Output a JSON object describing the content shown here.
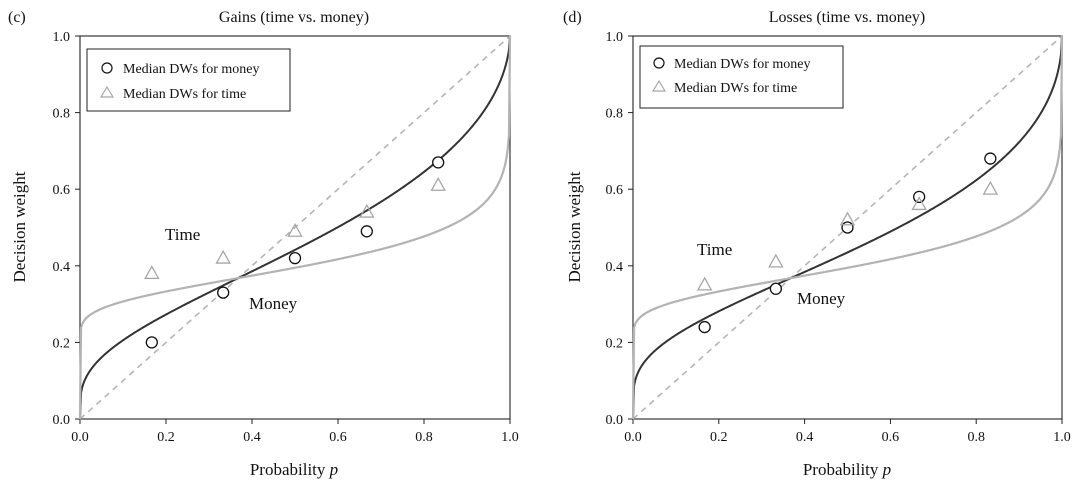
{
  "chart_data": [
    {
      "panel_label": "(c)",
      "type": "scatter",
      "title": "Gains (time vs. money)",
      "xlabel": "Probability",
      "xlabel_var": "p",
      "ylabel": "Decision weight",
      "xlim": [
        0,
        1
      ],
      "ylim": [
        0,
        1
      ],
      "xticks": [
        "0.0",
        "0.2",
        "0.4",
        "0.6",
        "0.8",
        "1.0"
      ],
      "yticks": [
        "0.0",
        "0.2",
        "0.4",
        "0.6",
        "0.8",
        "1.0"
      ],
      "grid": false,
      "legend_position": "top-left",
      "legend": [
        "Median DWs for money",
        "Median DWs for time"
      ],
      "annotations": {
        "time": "Time",
        "money": "Money"
      },
      "diagonal": true,
      "series": [
        {
          "name": "Median DWs for money",
          "marker": "circle",
          "color": "#111111",
          "points": [
            [
              0.167,
              0.2
            ],
            [
              0.333,
              0.33
            ],
            [
              0.5,
              0.42
            ],
            [
              0.667,
              0.49
            ],
            [
              0.833,
              0.67
            ]
          ],
          "fit": {
            "gamma": 0.55,
            "delta": 1.0
          }
        },
        {
          "name": "Median DWs for time",
          "marker": "triangle",
          "color": "#a6a6a6",
          "points": [
            [
              0.167,
              0.38
            ],
            [
              0.333,
              0.42
            ],
            [
              0.5,
              0.49
            ],
            [
              0.667,
              0.54
            ],
            [
              0.833,
              0.61
            ]
          ],
          "fit": {
            "gamma": 0.2,
            "delta": 1.0
          }
        }
      ]
    },
    {
      "panel_label": "(d)",
      "type": "scatter",
      "title": "Losses (time vs. money)",
      "xlabel": "Probability",
      "xlabel_var": "p",
      "ylabel": "Decision weight",
      "xlim": [
        0,
        1
      ],
      "ylim": [
        0,
        1
      ],
      "xticks": [
        "0.0",
        "0.2",
        "0.4",
        "0.6",
        "0.8",
        "1.0"
      ],
      "yticks": [
        "0.0",
        "0.2",
        "0.4",
        "0.6",
        "0.8",
        "1.0"
      ],
      "grid": false,
      "legend_position": "top-left",
      "legend": [
        "Median DWs for money",
        "Median DWs for time"
      ],
      "annotations": {
        "time": "Time",
        "money": "Money"
      },
      "diagonal": true,
      "series": [
        {
          "name": "Median DWs for money",
          "marker": "circle",
          "color": "#111111",
          "points": [
            [
              0.167,
              0.24
            ],
            [
              0.333,
              0.34
            ],
            [
              0.5,
              0.5
            ],
            [
              0.667,
              0.58
            ],
            [
              0.833,
              0.68
            ]
          ],
          "fit": {
            "gamma": 0.5,
            "delta": 1.0
          }
        },
        {
          "name": "Median DWs for time",
          "marker": "triangle",
          "color": "#a6a6a6",
          "points": [
            [
              0.167,
              0.35
            ],
            [
              0.333,
              0.41
            ],
            [
              0.5,
              0.52
            ],
            [
              0.667,
              0.56
            ],
            [
              0.833,
              0.6
            ]
          ],
          "fit": {
            "gamma": 0.2,
            "delta": 1.0
          }
        }
      ]
    }
  ]
}
